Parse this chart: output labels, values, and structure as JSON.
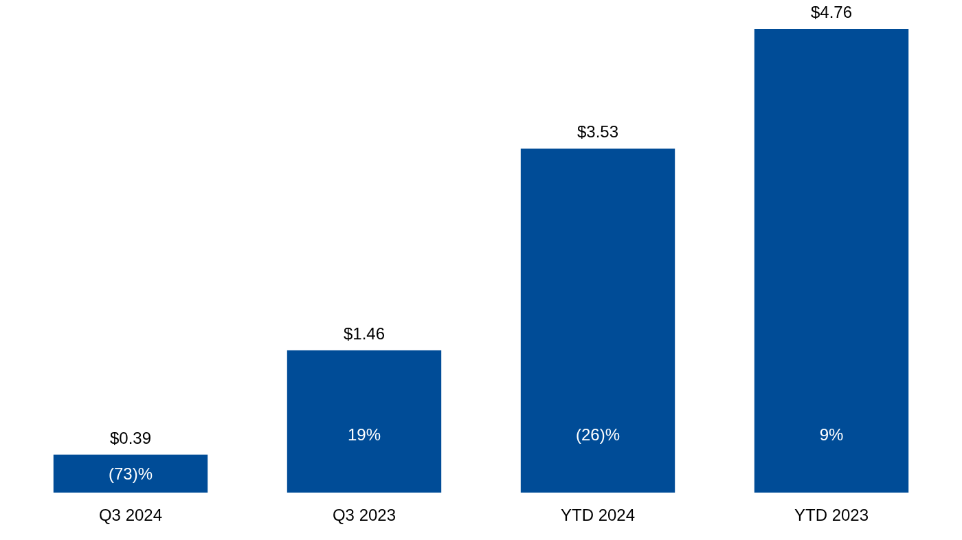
{
  "chart_data": {
    "type": "bar",
    "categories": [
      "Q3 2024",
      "Q3 2023",
      "YTD 2024",
      "YTD 2023"
    ],
    "values": [
      0.39,
      1.46,
      3.53,
      4.76
    ],
    "color": "#004c97",
    "value_labels": [
      "$0.39",
      "$1.46",
      "$3.53",
      "$4.76"
    ],
    "annotations": [
      "(73)%",
      "19%",
      "(26)%",
      "9%"
    ]
  }
}
